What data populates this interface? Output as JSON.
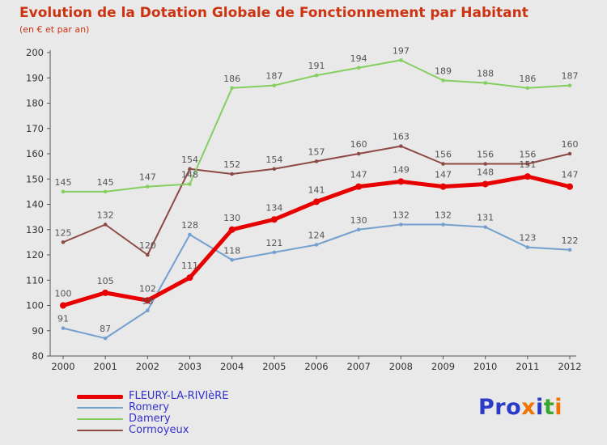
{
  "title": "Evolution de la Dotation Globale de Fonctionnement par Habitant",
  "subtitle": "(en € et par an)",
  "colors": {
    "title": "#cc3311",
    "background": "#e9e9e9",
    "legend_text": "#3333cc",
    "data_label": "#555555",
    "axis": "#555555",
    "tick_text": "#333333"
  },
  "chart_data": {
    "type": "line",
    "x": [
      2000,
      2001,
      2002,
      2003,
      2004,
      2005,
      2006,
      2007,
      2008,
      2009,
      2010,
      2011,
      2012
    ],
    "ylim": [
      80,
      200
    ],
    "yticks": [
      80,
      90,
      100,
      110,
      120,
      130,
      140,
      150,
      160,
      170,
      180,
      190,
      200
    ],
    "grid": false,
    "legend_position": "bottom-left",
    "series": [
      {
        "name": "FLEURY-LA-RIVIèRE",
        "color": "#e80000",
        "width": 5,
        "values": [
          100,
          105,
          102,
          111,
          130,
          134,
          141,
          147,
          149,
          147,
          148,
          151,
          147
        ]
      },
      {
        "name": "Romery",
        "color": "#74a0cf",
        "width": 2,
        "values": [
          91,
          87,
          98,
          128,
          118,
          121,
          124,
          130,
          132,
          132,
          131,
          123,
          122
        ]
      },
      {
        "name": "Damery",
        "color": "#84cf5f",
        "width": 2,
        "values": [
          145,
          145,
          147,
          148,
          186,
          187,
          191,
          194,
          197,
          189,
          188,
          186,
          187
        ]
      },
      {
        "name": "Cormoyeux",
        "color": "#8d4a45",
        "width": 2,
        "values": [
          125,
          132,
          120,
          154,
          152,
          154,
          157,
          160,
          163,
          156,
          156,
          156,
          160
        ]
      }
    ]
  },
  "logo": {
    "letters": [
      {
        "ch": "P",
        "color": "#2a3bc8"
      },
      {
        "ch": "r",
        "color": "#2a3bc8"
      },
      {
        "ch": "o",
        "color": "#2a3bc8"
      },
      {
        "ch": "x",
        "color": "#f07300"
      },
      {
        "ch": "i",
        "color": "#2a3bc8"
      },
      {
        "ch": "t",
        "color": "#3aa62f"
      },
      {
        "ch": "i",
        "color": "#f07300"
      }
    ]
  }
}
